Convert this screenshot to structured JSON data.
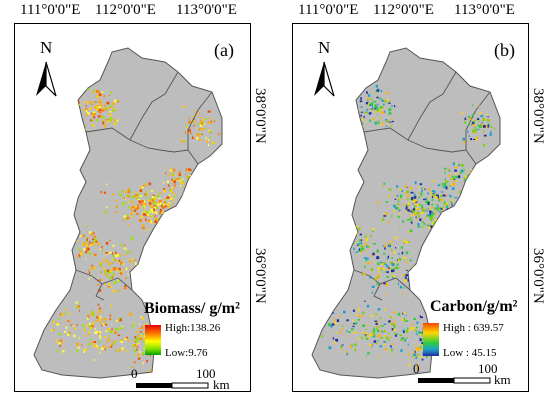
{
  "top_ticks": [
    "111°0'0\"E",
    "112°0'0\"E",
    "113°0'0\"E"
  ],
  "side_ticks": [
    "38°0'0\"N",
    "36°0'0\"N"
  ],
  "north_label": "N",
  "scale": {
    "zero": "0",
    "max": "100",
    "unit": "km"
  },
  "panels": [
    {
      "letter": "(a)",
      "legend_title": "Biomass/ g/m²",
      "legend_high": "High:138.26",
      "legend_low": "Low:9.76",
      "ramp_colors": [
        "#e8000b",
        "#ff7f00",
        "#ffff00",
        "#7fdf00",
        "#00a000"
      ]
    },
    {
      "letter": "(b)",
      "legend_title": "Carbon/g/m²",
      "legend_high": "High : 639.57",
      "legend_low": "Low : 45.15",
      "ramp_colors": [
        "#ff4500",
        "#ffd700",
        "#2ecc40",
        "#1fa0c8",
        "#1f2c9a"
      ]
    }
  ],
  "colors": {
    "region_fill": "#bdbdbd",
    "boundary": "#555555"
  }
}
